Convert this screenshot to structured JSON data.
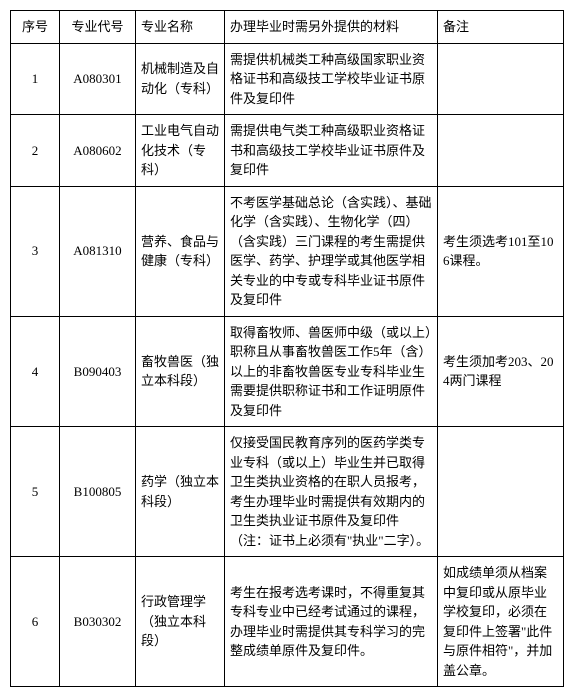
{
  "headers": {
    "seq": "序号",
    "code": "专业代号",
    "name": "专业名称",
    "material": "办理毕业时需另外提供的材料",
    "remark": "备注"
  },
  "rows": [
    {
      "seq": "1",
      "code": "A080301",
      "name": "机械制造及自动化（专科）",
      "material": "需提供机械类工种高级国家职业资格证书和高级技工学校毕业证书原件及复印件",
      "remark": ""
    },
    {
      "seq": "2",
      "code": "A080602",
      "name": "工业电气自动化技术（专科）",
      "material": "需提供电气类工种高级职业资格证书和高级技工学校毕业证书原件及复印件",
      "remark": ""
    },
    {
      "seq": "3",
      "code": "A081310",
      "name": "营养、食品与健康（专科）",
      "material": "不考医学基础总论（含实践）、基础化学（含实践）、生物化学（四）（含实践）三门课程的考生需提供医学、药学、护理学或其他医学相关专业的中专或专科毕业证书原件及复印件",
      "remark": "考生须选考101至106课程。"
    },
    {
      "seq": "4",
      "code": "B090403",
      "name": "畜牧兽医（独立本科段）",
      "material": "取得畜牧师、兽医师中级（或以上）职称且从事畜牧兽医工作5年（含）以上的非畜牧兽医专业专科毕业生需要提供职称证书和工作证明原件及复印件",
      "remark": "考生须加考203、204两门课程"
    },
    {
      "seq": "5",
      "code": "B100805",
      "name": "药学（独立本科段）",
      "material": "仅接受国民教育序列的医药学类专业专科（或以上）毕业生并已取得卫生类执业资格的在职人员报考，考生办理毕业时需提供有效期内的卫生类执业证书原件及复印件（注：证书上必须有\"执业\"二字）。",
      "remark": ""
    },
    {
      "seq": "6",
      "code": "B030302",
      "name": "行政管理学（独立本科段）",
      "material": "考生在报考选考课时，不得重复其专科专业中已经考试通过的课程，办理毕业时需提供其专科学习的完整成绩单原件及复印件。",
      "remark": "如成绩单须从档案中复印或从原毕业学校复印，必须在复印件上签署\"此件与原件相符\"，并加盖公章。"
    }
  ]
}
